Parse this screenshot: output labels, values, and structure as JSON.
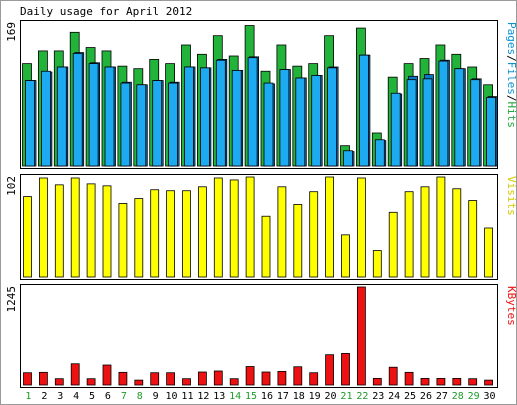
{
  "chart_data": {
    "type": "bar",
    "title": "Daily usage for April 2012",
    "categories": [
      "1",
      "2",
      "3",
      "4",
      "5",
      "6",
      "7",
      "8",
      "9",
      "10",
      "11",
      "12",
      "13",
      "14",
      "15",
      "16",
      "17",
      "18",
      "19",
      "20",
      "21",
      "22",
      "23",
      "24",
      "25",
      "26",
      "27",
      "28",
      "29",
      "30"
    ],
    "weekend_days": [
      "1",
      "7",
      "8",
      "14",
      "15",
      "21",
      "22",
      "28",
      "29"
    ],
    "panels": [
      {
        "id": "hits",
        "ymax_label": "169",
        "ylim": [
          0,
          169
        ],
        "ylabel_parts": [
          {
            "text": "Pages",
            "color": "#0a92d4"
          },
          {
            "text": "/",
            "color": "#000000"
          },
          {
            "text": "Files",
            "color": "#0a92d4"
          },
          {
            "text": "/",
            "color": "#000000"
          },
          {
            "text": "Hits",
            "color": "#1fa83a"
          }
        ],
        "series": [
          {
            "name": "Hits",
            "color": "#22b33a",
            "values": [
              121,
              136,
              136,
              158,
              140,
              136,
              118,
              115,
              126,
              121,
              143,
              132,
              154,
              130,
              166,
              112,
              143,
              118,
              121,
              154,
              24,
              163,
              39,
              105,
              121,
              127,
              143,
              132,
              117,
              96
            ]
          },
          {
            "name": "Files",
            "color": "#1eaaf0",
            "values": [
              101,
              112,
              117,
              133,
              121,
              117,
              98,
              96,
              101,
              98,
              117,
              116,
              125,
              113,
              128,
              98,
              114,
              104,
              107,
              116,
              18,
              131,
              31,
              86,
              102,
              103,
              124,
              115,
              102,
              81
            ]
          },
          {
            "name": "Pages",
            "color": "#0a78c8",
            "values": [
              101,
              111,
              117,
              134,
              122,
              117,
              99,
              96,
              101,
              99,
              117,
              116,
              126,
              113,
              129,
              97,
              114,
              104,
              107,
              117,
              17,
              131,
              30,
              85,
              106,
              108,
              125,
              115,
              103,
              82
            ]
          }
        ]
      },
      {
        "id": "visits",
        "ymax_label": "102",
        "ylim": [
          0,
          102
        ],
        "ylabel_parts": [
          {
            "text": "Visits",
            "color": "#d8c800"
          }
        ],
        "series": [
          {
            "name": "Visits",
            "color": "#ffff00",
            "values": [
              82,
              101,
              94,
              101,
              95,
              93,
              75,
              80,
              89,
              88,
              88,
              92,
              101,
              99,
              102,
              62,
              92,
              74,
              87,
              102,
              43,
              101,
              27,
              66,
              87,
              92,
              102,
              90,
              78,
              50
            ]
          }
        ]
      },
      {
        "id": "kbytes",
        "ymax_label": "1245",
        "ylim": [
          0,
          1245
        ],
        "ylabel_parts": [
          {
            "text": "KBytes",
            "color": "#ee1111"
          }
        ],
        "series": [
          {
            "name": "KBytes",
            "color": "#ee1111",
            "values": [
              156,
              161,
              80,
              270,
              80,
              254,
              161,
              62,
              156,
              156,
              80,
              165,
              178,
              80,
              235,
              165,
              173,
              232,
              156,
              385,
              401,
              1245,
              84,
              226,
              161,
              84,
              84,
              84,
              80,
              62
            ]
          }
        ]
      }
    ]
  }
}
